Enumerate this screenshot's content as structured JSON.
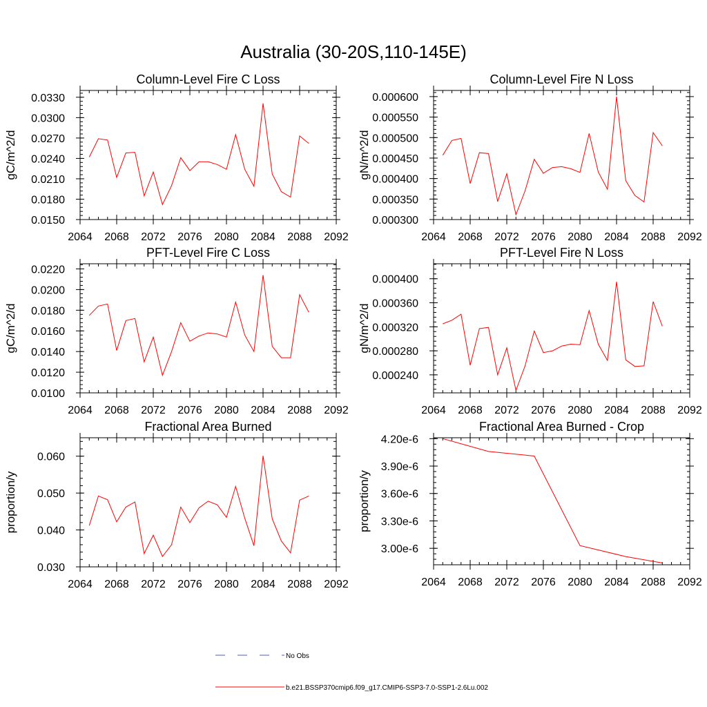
{
  "title": "Australia (30-20S,110-145E)",
  "colors": {
    "series": "#ff0000",
    "obs": "#4a5fc1",
    "axis": "#000000"
  },
  "legend": {
    "entries": [
      {
        "label": "No Obs",
        "style": "dashed",
        "color": "#4a5fc1"
      },
      {
        "label": "b.e21.BSSP370cmip6.f09_g17.CMIP6-SSP3-7.0-SSP1-2.6Lu.002",
        "style": "solid",
        "color": "#ff0000"
      }
    ]
  },
  "chart_data": [
    {
      "type": "line",
      "title": "Column-Level Fire C Loss",
      "ylabel": "gC/m^2/d",
      "xlim": [
        2064,
        2092
      ],
      "ylim": [
        0.015,
        0.034
      ],
      "xticks": [
        "2064",
        "2068",
        "2072",
        "2076",
        "2080",
        "2084",
        "2088",
        "2092"
      ],
      "yticks": [
        0.015,
        0.018,
        0.021,
        0.024,
        0.027,
        0.03,
        0.033
      ],
      "ytick_labels": [
        "0.0150",
        "0.0180",
        "0.0210",
        "0.0240",
        "0.0270",
        "0.0300",
        "0.0330"
      ],
      "x": [
        2065,
        2066,
        2067,
        2068,
        2069,
        2070,
        2071,
        2072,
        2073,
        2074,
        2075,
        2076,
        2077,
        2078,
        2079,
        2080,
        2081,
        2082,
        2083,
        2084,
        2085,
        2086,
        2087,
        2088,
        2089
      ],
      "series": [
        {
          "values": [
            0.0242,
            0.0269,
            0.0267,
            0.0212,
            0.0248,
            0.0249,
            0.0185,
            0.022,
            0.0172,
            0.02,
            0.0241,
            0.0222,
            0.0235,
            0.0235,
            0.0231,
            0.0224,
            0.0275,
            0.0224,
            0.0199,
            0.0321,
            0.0217,
            0.0191,
            0.0183,
            0.0273,
            0.0262
          ]
        }
      ]
    },
    {
      "type": "line",
      "title": "Column-Level Fire N Loss",
      "ylabel": "gN/m^2/d",
      "xlim": [
        2064,
        2092
      ],
      "ylim": [
        0.0003,
        0.000615
      ],
      "xticks": [
        "2064",
        "2068",
        "2072",
        "2076",
        "2080",
        "2084",
        "2088",
        "2092"
      ],
      "yticks": [
        0.0003,
        0.00035,
        0.0004,
        0.00045,
        0.0005,
        0.00055,
        0.0006
      ],
      "ytick_labels": [
        "0.000300",
        "0.000350",
        "0.000400",
        "0.000450",
        "0.000500",
        "0.000550",
        "0.000600"
      ],
      "x": [
        2065,
        2066,
        2067,
        2068,
        2069,
        2070,
        2071,
        2072,
        2073,
        2074,
        2075,
        2076,
        2077,
        2078,
        2079,
        2080,
        2081,
        2082,
        2083,
        2084,
        2085,
        2086,
        2087,
        2088,
        2089
      ],
      "series": [
        {
          "values": [
            0.000457,
            0.000493,
            0.000498,
            0.000388,
            0.000463,
            0.000461,
            0.000344,
            0.000412,
            0.000312,
            0.00037,
            0.000447,
            0.000413,
            0.000427,
            0.000429,
            0.000424,
            0.000415,
            0.00051,
            0.000416,
            0.000374,
            0.0006,
            0.000395,
            0.000359,
            0.000343,
            0.000512,
            0.00048
          ]
        }
      ]
    },
    {
      "type": "line",
      "title": "PFT-Level Fire C Loss",
      "ylabel": "gC/m^2/d",
      "xlim": [
        2064,
        2092
      ],
      "ylim": [
        0.01,
        0.0225
      ],
      "xticks": [
        "2064",
        "2068",
        "2072",
        "2076",
        "2080",
        "2084",
        "2088",
        "2092"
      ],
      "yticks": [
        0.01,
        0.012,
        0.014,
        0.016,
        0.018,
        0.02,
        0.022
      ],
      "ytick_labels": [
        "0.0100",
        "0.0120",
        "0.0140",
        "0.0160",
        "0.0180",
        "0.0200",
        "0.0220"
      ],
      "x": [
        2065,
        2066,
        2067,
        2068,
        2069,
        2070,
        2071,
        2072,
        2073,
        2074,
        2075,
        2076,
        2077,
        2078,
        2079,
        2080,
        2081,
        2082,
        2083,
        2084,
        2085,
        2086,
        2087,
        2088,
        2089
      ],
      "series": [
        {
          "values": [
            0.0175,
            0.0184,
            0.0186,
            0.0141,
            0.017,
            0.0172,
            0.013,
            0.0154,
            0.0117,
            0.014,
            0.0168,
            0.015,
            0.0155,
            0.0158,
            0.0157,
            0.0154,
            0.0188,
            0.0156,
            0.014,
            0.0214,
            0.0145,
            0.0134,
            0.0134,
            0.0195,
            0.0178
          ]
        }
      ]
    },
    {
      "type": "line",
      "title": "PFT-Level Fire N Loss",
      "ylabel": "gN/m^2/d",
      "xlim": [
        2064,
        2092
      ],
      "ylim": [
        0.00021,
        0.000425
      ],
      "xticks": [
        "2064",
        "2068",
        "2072",
        "2076",
        "2080",
        "2084",
        "2088",
        "2092"
      ],
      "yticks": [
        0.00024,
        0.00028,
        0.00032,
        0.00036,
        0.0004
      ],
      "ytick_labels": [
        "0.000240",
        "0.000280",
        "0.000320",
        "0.000360",
        "0.000400"
      ],
      "x": [
        2065,
        2066,
        2067,
        2068,
        2069,
        2070,
        2071,
        2072,
        2073,
        2074,
        2075,
        2076,
        2077,
        2078,
        2079,
        2080,
        2081,
        2082,
        2083,
        2084,
        2085,
        2086,
        2087,
        2088,
        2089
      ],
      "series": [
        {
          "values": [
            0.000325,
            0.000331,
            0.000341,
            0.000256,
            0.000317,
            0.000319,
            0.00024,
            0.000285,
            0.000214,
            0.000255,
            0.000313,
            0.000277,
            0.00028,
            0.000288,
            0.000291,
            0.00029,
            0.000347,
            0.000291,
            0.000264,
            0.000395,
            0.000265,
            0.000254,
            0.000255,
            0.000362,
            0.000321
          ]
        }
      ]
    },
    {
      "type": "line",
      "title": "Fractional Area Burned",
      "ylabel": "proportion/y",
      "xlim": [
        2064,
        2092
      ],
      "ylim": [
        0.03,
        0.065
      ],
      "xticks": [
        "2064",
        "2068",
        "2072",
        "2076",
        "2080",
        "2084",
        "2088",
        "2092"
      ],
      "yticks": [
        0.03,
        0.04,
        0.05,
        0.06
      ],
      "ytick_labels": [
        "0.030",
        "0.040",
        "0.050",
        "0.060"
      ],
      "x": [
        2065,
        2066,
        2067,
        2068,
        2069,
        2070,
        2071,
        2072,
        2073,
        2074,
        2075,
        2076,
        2077,
        2078,
        2079,
        2080,
        2081,
        2082,
        2083,
        2084,
        2085,
        2086,
        2087,
        2088,
        2089
      ],
      "series": [
        {
          "values": [
            0.0412,
            0.0492,
            0.0482,
            0.0422,
            0.0462,
            0.0476,
            0.0336,
            0.0386,
            0.0328,
            0.036,
            0.0462,
            0.042,
            0.046,
            0.0478,
            0.0468,
            0.0434,
            0.0518,
            0.0432,
            0.0357,
            0.0601,
            0.043,
            0.037,
            0.0338,
            0.0481,
            0.0492
          ]
        }
      ]
    },
    {
      "type": "line",
      "title": "Fractional Area Burned - Crop",
      "ylabel": "proportion/y",
      "xlim": [
        2064,
        2092
      ],
      "ylim": [
        2.82e-06,
        4.21e-06
      ],
      "xticks": [
        "2064",
        "2068",
        "2072",
        "2076",
        "2080",
        "2084",
        "2088",
        "2092"
      ],
      "yticks": [
        3e-06,
        3.3e-06,
        3.6e-06,
        3.9e-06,
        4.2e-06
      ],
      "ytick_labels": [
        "3.00e-6",
        "3.30e-6",
        "3.60e-6",
        "3.90e-6",
        "4.20e-6"
      ],
      "x": [
        2065,
        2070,
        2075,
        2080,
        2085,
        2089
      ],
      "series": [
        {
          "values": [
            4.2e-06,
            4.06e-06,
            4.01e-06,
            3.03e-06,
            2.91e-06,
            2.84e-06
          ]
        }
      ]
    }
  ]
}
